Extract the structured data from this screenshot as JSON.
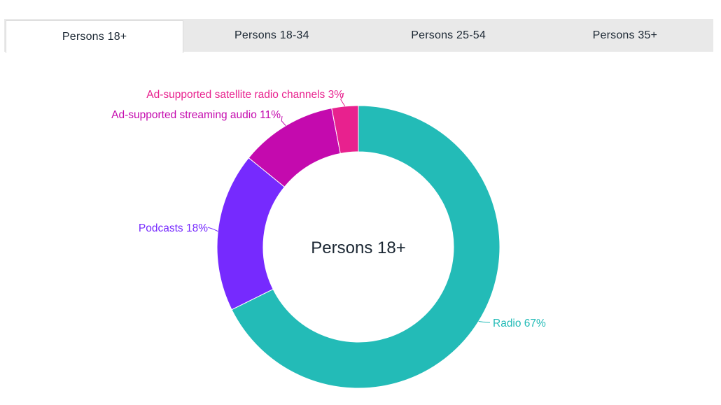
{
  "tabs": [
    {
      "label": "Persons 18+",
      "active": true
    },
    {
      "label": "Persons 18-34",
      "active": false
    },
    {
      "label": "Persons 25-54",
      "active": false
    },
    {
      "label": "Persons 35+",
      "active": false
    }
  ],
  "chart_data": {
    "type": "pie",
    "subtype": "donut",
    "center_label": "Persons 18+",
    "slices": [
      {
        "label": "Radio 67%",
        "name": "Radio",
        "value": 67,
        "color": "#23bbb7"
      },
      {
        "label": "Podcasts 18%",
        "name": "Podcasts",
        "value": 18,
        "color": "#762afe"
      },
      {
        "label": "Ad-supported streaming audio 11%",
        "name": "Ad-supported streaming audio",
        "value": 11,
        "color": "#c40aae"
      },
      {
        "label": "Ad-supported satellite radio channels 3%",
        "name": "Ad-supported satellite radio channels",
        "value": 3,
        "color": "#e8218e"
      }
    ]
  }
}
